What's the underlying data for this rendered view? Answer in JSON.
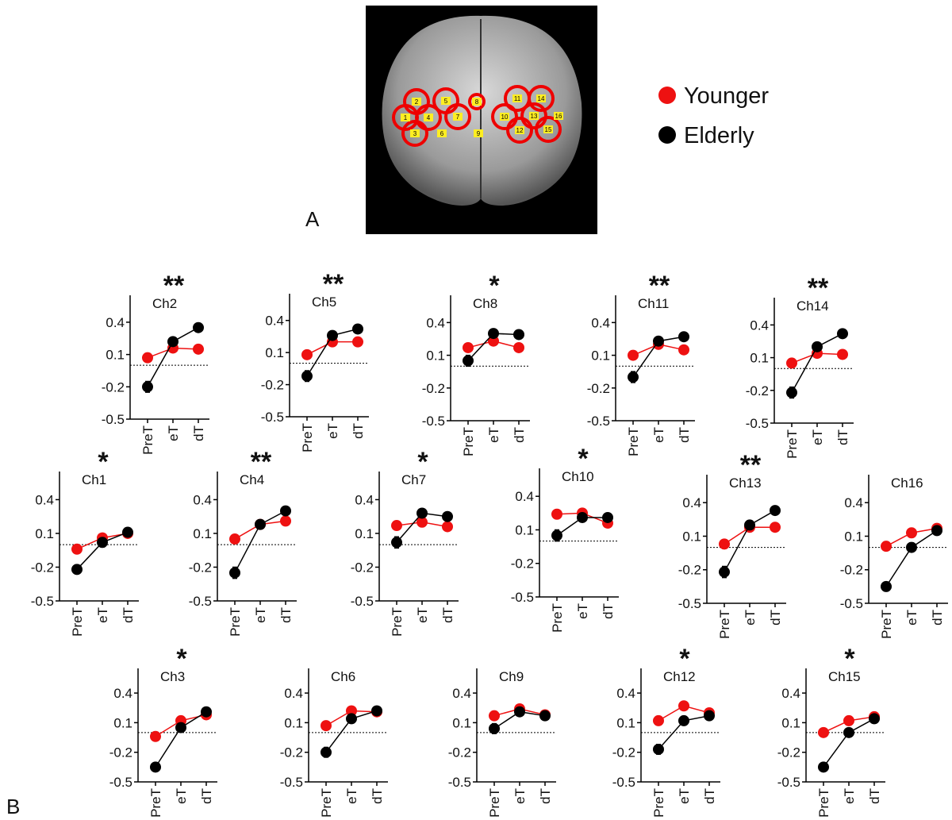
{
  "panel_labels": [
    "A",
    "B"
  ],
  "legend": [
    {
      "name": "Younger",
      "color": "#ee1111"
    },
    {
      "name": "Elderly",
      "color": "#000000"
    }
  ],
  "brain_channels": [
    "1",
    "2",
    "3",
    "4",
    "5",
    "6",
    "7",
    "8",
    "9",
    "10",
    "11",
    "12",
    "13",
    "14",
    "15",
    "16"
  ],
  "chart_data": [
    {
      "type": "line",
      "title": "Ch2",
      "annotation": "**",
      "categories": [
        "PreT",
        "eT",
        "dT"
      ],
      "ylim": [
        -0.5,
        0.65
      ],
      "yticks": [
        -0.5,
        -0.2,
        0.1,
        0.4
      ],
      "hline": 0,
      "series": [
        {
          "color": "#ee1111",
          "values": [
            0.07,
            0.16,
            0.15
          ],
          "errors": [
            0.04,
            0.04,
            0.03
          ]
        },
        {
          "color": "#000000",
          "values": [
            -0.2,
            0.22,
            0.35
          ],
          "errors": [
            0.05,
            0.04,
            0.03
          ]
        }
      ]
    },
    {
      "type": "line",
      "title": "Ch5",
      "annotation": "**",
      "categories": [
        "PreT",
        "eT",
        "dT"
      ],
      "ylim": [
        -0.5,
        0.65
      ],
      "yticks": [
        -0.5,
        -0.2,
        0.1,
        0.4
      ],
      "hline": 0,
      "series": [
        {
          "color": "#ee1111",
          "values": [
            0.08,
            0.2,
            0.2
          ],
          "errors": [
            0.04,
            0.04,
            0.03
          ]
        },
        {
          "color": "#000000",
          "values": [
            -0.12,
            0.26,
            0.32
          ],
          "errors": [
            0.05,
            0.04,
            0.03
          ]
        }
      ]
    },
    {
      "type": "line",
      "title": "Ch8",
      "annotation": "*",
      "categories": [
        "PreT",
        "eT",
        "dT"
      ],
      "ylim": [
        -0.5,
        0.65
      ],
      "yticks": [
        -0.5,
        -0.2,
        0.1,
        0.4
      ],
      "hline": 0,
      "series": [
        {
          "color": "#ee1111",
          "values": [
            0.17,
            0.23,
            0.17
          ],
          "errors": [
            0.04,
            0.04,
            0.03
          ]
        },
        {
          "color": "#000000",
          "values": [
            0.05,
            0.3,
            0.29
          ],
          "errors": [
            0.05,
            0.04,
            0.03
          ]
        }
      ]
    },
    {
      "type": "line",
      "title": "Ch11",
      "annotation": "**",
      "categories": [
        "PreT",
        "eT",
        "dT"
      ],
      "ylim": [
        -0.5,
        0.65
      ],
      "yticks": [
        -0.5,
        -0.2,
        0.1,
        0.4
      ],
      "hline": 0,
      "series": [
        {
          "color": "#ee1111",
          "values": [
            0.1,
            0.2,
            0.15
          ],
          "errors": [
            0.04,
            0.04,
            0.03
          ]
        },
        {
          "color": "#000000",
          "values": [
            -0.1,
            0.23,
            0.27
          ],
          "errors": [
            0.05,
            0.04,
            0.03
          ]
        }
      ]
    },
    {
      "type": "line",
      "title": "Ch14",
      "annotation": "**",
      "categories": [
        "PreT",
        "eT",
        "dT"
      ],
      "ylim": [
        -0.5,
        0.65
      ],
      "yticks": [
        -0.5,
        -0.2,
        0.1,
        0.4
      ],
      "hline": 0,
      "series": [
        {
          "color": "#ee1111",
          "values": [
            0.05,
            0.14,
            0.13
          ],
          "errors": [
            0.04,
            0.04,
            0.03
          ]
        },
        {
          "color": "#000000",
          "values": [
            -0.22,
            0.2,
            0.32
          ],
          "errors": [
            0.05,
            0.04,
            0.03
          ]
        }
      ]
    },
    {
      "type": "line",
      "title": "Ch1",
      "annotation": "*",
      "categories": [
        "PreT",
        "eT",
        "dT"
      ],
      "ylim": [
        -0.5,
        0.65
      ],
      "yticks": [
        -0.5,
        -0.2,
        0.1,
        0.4
      ],
      "hline": 0,
      "series": [
        {
          "color": "#ee1111",
          "values": [
            -0.04,
            0.06,
            0.1
          ],
          "errors": [
            0.03,
            0.03,
            0.03
          ]
        },
        {
          "color": "#000000",
          "values": [
            -0.22,
            0.02,
            0.11
          ],
          "errors": [
            0.04,
            0.04,
            0.03
          ]
        }
      ]
    },
    {
      "type": "line",
      "title": "Ch4",
      "annotation": "**",
      "categories": [
        "PreT",
        "eT",
        "dT"
      ],
      "ylim": [
        -0.5,
        0.65
      ],
      "yticks": [
        -0.5,
        -0.2,
        0.1,
        0.4
      ],
      "hline": 0,
      "series": [
        {
          "color": "#ee1111",
          "values": [
            0.05,
            0.18,
            0.21
          ],
          "errors": [
            0.04,
            0.04,
            0.03
          ]
        },
        {
          "color": "#000000",
          "values": [
            -0.25,
            0.18,
            0.3
          ],
          "errors": [
            0.05,
            0.04,
            0.03
          ]
        }
      ]
    },
    {
      "type": "line",
      "title": "Ch7",
      "annotation": "*",
      "categories": [
        "PreT",
        "eT",
        "dT"
      ],
      "ylim": [
        -0.5,
        0.65
      ],
      "yticks": [
        -0.5,
        -0.2,
        0.1,
        0.4
      ],
      "hline": 0,
      "series": [
        {
          "color": "#ee1111",
          "values": [
            0.17,
            0.2,
            0.16
          ],
          "errors": [
            0.04,
            0.04,
            0.03
          ]
        },
        {
          "color": "#000000",
          "values": [
            0.02,
            0.28,
            0.25
          ],
          "errors": [
            0.05,
            0.04,
            0.03
          ]
        }
      ]
    },
    {
      "type": "line",
      "title": "Ch10",
      "annotation": "*",
      "categories": [
        "PreT",
        "eT",
        "dT"
      ],
      "ylim": [
        -0.5,
        0.65
      ],
      "yticks": [
        -0.5,
        -0.2,
        0.1,
        0.4
      ],
      "hline": 0,
      "series": [
        {
          "color": "#ee1111",
          "values": [
            0.24,
            0.25,
            0.16
          ],
          "errors": [
            0.04,
            0.04,
            0.03
          ]
        },
        {
          "color": "#000000",
          "values": [
            0.05,
            0.21,
            0.21
          ],
          "errors": [
            0.05,
            0.04,
            0.03
          ]
        }
      ]
    },
    {
      "type": "line",
      "title": "Ch13",
      "annotation": "**",
      "categories": [
        "PreT",
        "eT",
        "dT"
      ],
      "ylim": [
        -0.5,
        0.65
      ],
      "yticks": [
        -0.5,
        -0.2,
        0.1,
        0.4
      ],
      "hline": 0,
      "series": [
        {
          "color": "#ee1111",
          "values": [
            0.03,
            0.18,
            0.18
          ],
          "errors": [
            0.04,
            0.04,
            0.03
          ]
        },
        {
          "color": "#000000",
          "values": [
            -0.22,
            0.2,
            0.33
          ],
          "errors": [
            0.05,
            0.04,
            0.03
          ]
        }
      ]
    },
    {
      "type": "line",
      "title": "Ch16",
      "annotation": "",
      "categories": [
        "PreT",
        "eT",
        "dT"
      ],
      "ylim": [
        -0.5,
        0.65
      ],
      "yticks": [
        -0.5,
        -0.2,
        0.1,
        0.4
      ],
      "hline": 0,
      "series": [
        {
          "color": "#ee1111",
          "values": [
            0.01,
            0.13,
            0.17
          ],
          "errors": [
            0.04,
            0.04,
            0.03
          ]
        },
        {
          "color": "#000000",
          "values": [
            -0.35,
            0.0,
            0.15
          ],
          "errors": [
            0.04,
            0.04,
            0.03
          ]
        }
      ]
    },
    {
      "type": "line",
      "title": "Ch3",
      "annotation": "*",
      "categories": [
        "PreT",
        "eT",
        "dT"
      ],
      "ylim": [
        -0.5,
        0.65
      ],
      "yticks": [
        -0.5,
        -0.2,
        0.1,
        0.4
      ],
      "hline": 0,
      "series": [
        {
          "color": "#ee1111",
          "values": [
            -0.04,
            0.12,
            0.18
          ],
          "errors": [
            0.04,
            0.04,
            0.03
          ]
        },
        {
          "color": "#000000",
          "values": [
            -0.35,
            0.05,
            0.21
          ],
          "errors": [
            0.04,
            0.04,
            0.03
          ]
        }
      ]
    },
    {
      "type": "line",
      "title": "Ch6",
      "annotation": "",
      "categories": [
        "PreT",
        "eT",
        "dT"
      ],
      "ylim": [
        -0.5,
        0.65
      ],
      "yticks": [
        -0.5,
        -0.2,
        0.1,
        0.4
      ],
      "hline": 0,
      "series": [
        {
          "color": "#ee1111",
          "values": [
            0.07,
            0.22,
            0.21
          ],
          "errors": [
            0.04,
            0.04,
            0.04
          ]
        },
        {
          "color": "#000000",
          "values": [
            -0.2,
            0.14,
            0.22
          ],
          "errors": [
            0.05,
            0.04,
            0.03
          ]
        }
      ]
    },
    {
      "type": "line",
      "title": "Ch9",
      "annotation": "",
      "categories": [
        "PreT",
        "eT",
        "dT"
      ],
      "ylim": [
        -0.5,
        0.65
      ],
      "yticks": [
        -0.5,
        -0.2,
        0.1,
        0.4
      ],
      "hline": 0,
      "series": [
        {
          "color": "#ee1111",
          "values": [
            0.17,
            0.24,
            0.18
          ],
          "errors": [
            0.04,
            0.04,
            0.03
          ]
        },
        {
          "color": "#000000",
          "values": [
            0.04,
            0.21,
            0.17
          ],
          "errors": [
            0.05,
            0.04,
            0.03
          ]
        }
      ]
    },
    {
      "type": "line",
      "title": "Ch12",
      "annotation": "*",
      "categories": [
        "PreT",
        "eT",
        "dT"
      ],
      "ylim": [
        -0.5,
        0.65
      ],
      "yticks": [
        -0.5,
        -0.2,
        0.1,
        0.4
      ],
      "hline": 0,
      "series": [
        {
          "color": "#ee1111",
          "values": [
            0.12,
            0.27,
            0.2
          ],
          "errors": [
            0.04,
            0.04,
            0.03
          ]
        },
        {
          "color": "#000000",
          "values": [
            -0.17,
            0.12,
            0.17
          ],
          "errors": [
            0.05,
            0.04,
            0.03
          ]
        }
      ]
    },
    {
      "type": "line",
      "title": "Ch15",
      "annotation": "*",
      "categories": [
        "PreT",
        "eT",
        "dT"
      ],
      "ylim": [
        -0.5,
        0.65
      ],
      "yticks": [
        -0.5,
        -0.2,
        0.1,
        0.4
      ],
      "hline": 0,
      "series": [
        {
          "color": "#ee1111",
          "values": [
            0.0,
            0.12,
            0.16
          ],
          "errors": [
            0.04,
            0.04,
            0.03
          ]
        },
        {
          "color": "#000000",
          "values": [
            -0.35,
            0.0,
            0.14
          ],
          "errors": [
            0.03,
            0.04,
            0.03
          ]
        }
      ]
    }
  ]
}
